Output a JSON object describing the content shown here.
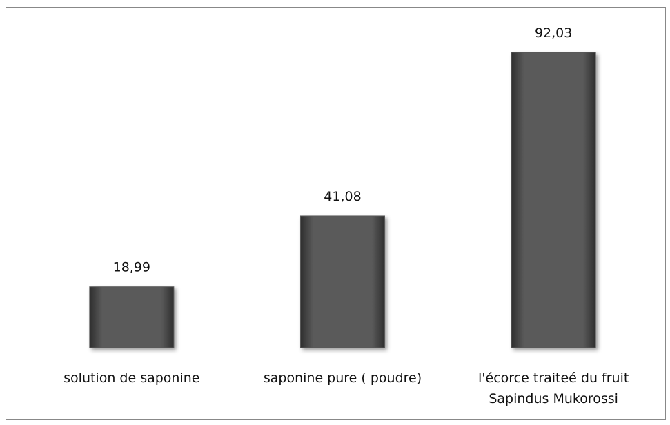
{
  "chart_data": {
    "type": "bar",
    "categories": [
      "solution de saponine",
      "saponine pure ( poudre)",
      "l'écorce traiteé du fruit Sapindus Mukorossi"
    ],
    "values": [
      18.99,
      41.08,
      92.03
    ],
    "value_labels": [
      "18,99",
      "41,08",
      "92,03"
    ],
    "color": "#595959"
  }
}
